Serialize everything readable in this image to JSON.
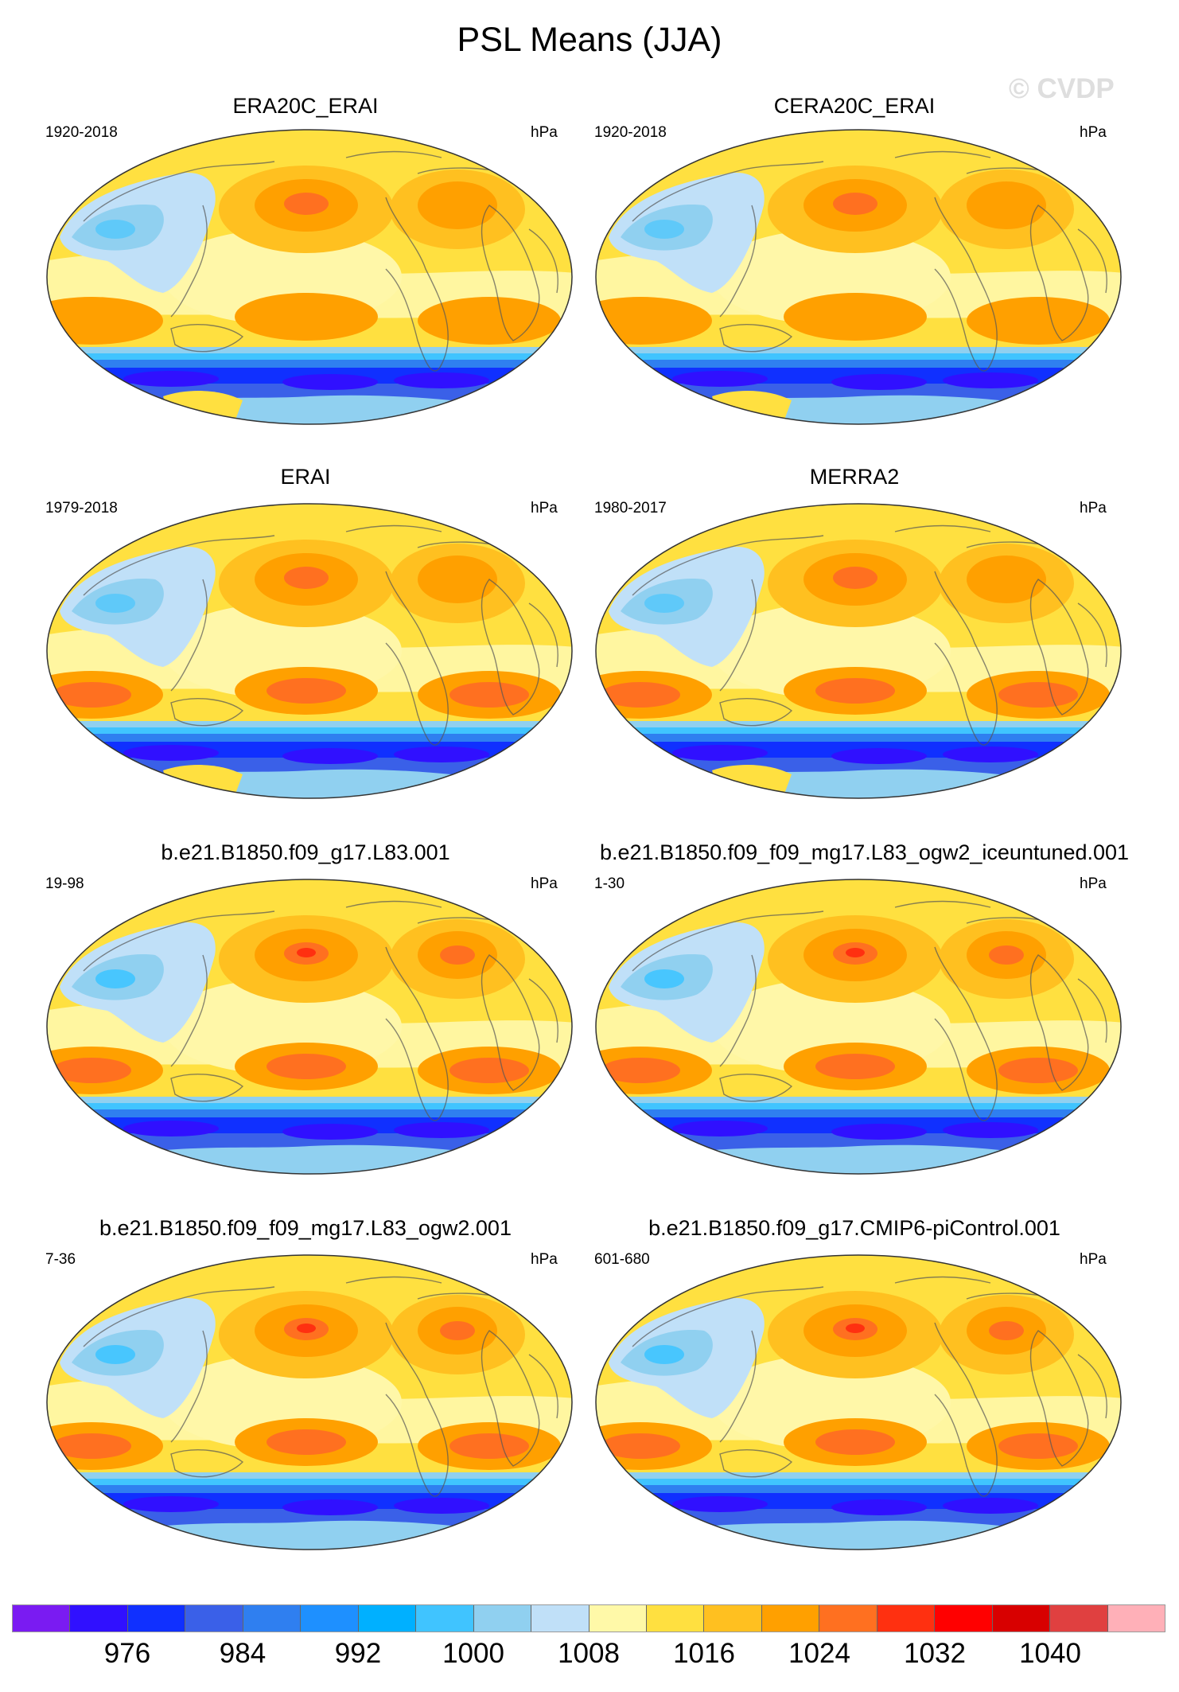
{
  "title": "PSL Means (JJA)",
  "watermark": "© CVDP",
  "panels": [
    {
      "name": "ERA20C_ERAI",
      "years": "1920-2018",
      "units": "hPa",
      "variant": "reanalysis-20c"
    },
    {
      "name": "CERA20C_ERAI",
      "years": "1920-2018",
      "units": "hPa",
      "variant": "reanalysis-20c"
    },
    {
      "name": "ERAI",
      "years": "1979-2018",
      "units": "hPa",
      "variant": "reanalysis-modern"
    },
    {
      "name": "MERRA2",
      "years": "1980-2017",
      "units": "hPa",
      "variant": "reanalysis-modern"
    },
    {
      "name": "b.e21.B1850.f09_g17.L83.001",
      "years": "19-98",
      "units": "hPa",
      "variant": "model"
    },
    {
      "name": "b.e21.B1850.f09_f09_mg17.L83_ogw2_iceuntuned.001",
      "years": "1-30",
      "units": "hPa",
      "variant": "model"
    },
    {
      "name": "b.e21.B1850.f09_f09_mg17.L83_ogw2.001",
      "years": "7-36",
      "units": "hPa",
      "variant": "model"
    },
    {
      "name": "b.e21.B1850.f09_g17.CMIP6-piControl.001",
      "years": "601-680",
      "units": "hPa",
      "variant": "model"
    }
  ],
  "colorbar": {
    "colors": [
      "#7a1bf2",
      "#3010ff",
      "#1030ff",
      "#3a60e8",
      "#2f7ff0",
      "#1e90ff",
      "#00b0ff",
      "#40c4ff",
      "#90d0f0",
      "#c0e0f8",
      "#fff9a8",
      "#ffe040",
      "#ffc020",
      "#ffa000",
      "#ff7020",
      "#ff3010",
      "#ff0000",
      "#d80000",
      "#e04040",
      "#ffb0b8"
    ],
    "tick_labels": [
      "976",
      "984",
      "992",
      "1000",
      "1008",
      "1016",
      "1024",
      "1032",
      "1040"
    ]
  }
}
